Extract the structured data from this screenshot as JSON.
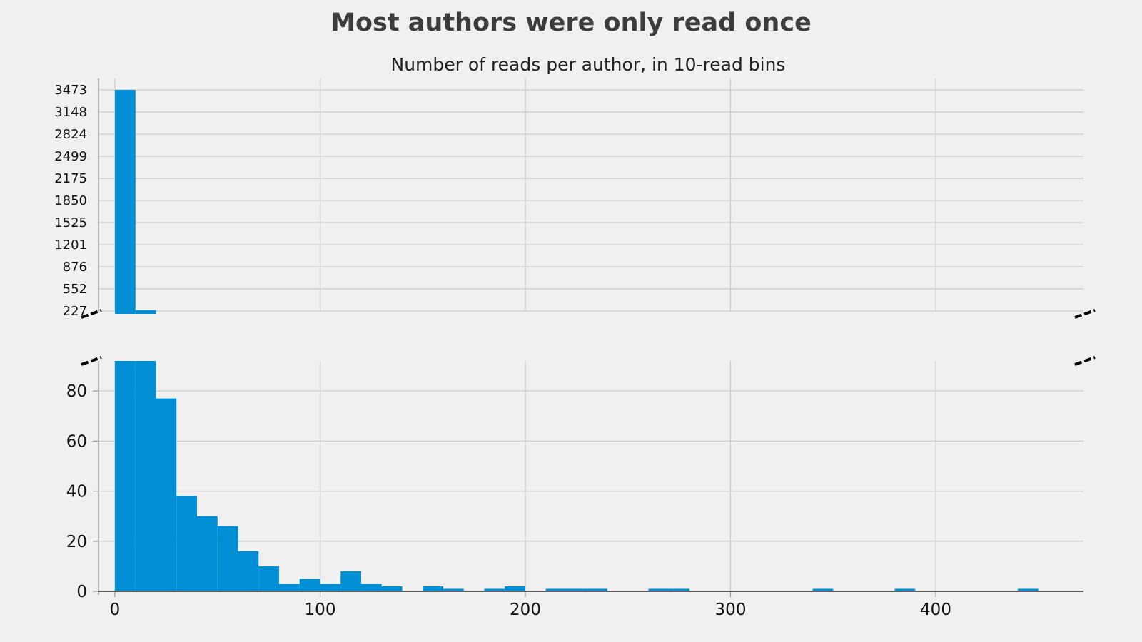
{
  "chart_data": {
    "type": "bar",
    "title": "Most authors were only read once",
    "subtitle": "Number of reads per author, in 10-read bins",
    "xlabel": "",
    "ylabel": "",
    "bin_width": 10,
    "x_ticks": [
      0,
      100,
      200,
      300,
      400
    ],
    "xlim": [
      -8,
      472
    ],
    "broken_y_axis": true,
    "upper_panel": {
      "ylim": [
        227,
        3473
      ],
      "y_ticks": [
        227,
        552,
        876,
        1201,
        1525,
        1850,
        2175,
        2499,
        2824,
        3148,
        3473
      ]
    },
    "lower_panel": {
      "ylim": [
        0,
        92
      ],
      "y_ticks": [
        0,
        20,
        40,
        60,
        80
      ]
    },
    "bins": [
      {
        "x": 0,
        "value": 3473
      },
      {
        "x": 10,
        "value": 240
      },
      {
        "x": 20,
        "value": 77
      },
      {
        "x": 30,
        "value": 38
      },
      {
        "x": 40,
        "value": 30
      },
      {
        "x": 50,
        "value": 26
      },
      {
        "x": 60,
        "value": 16
      },
      {
        "x": 70,
        "value": 10
      },
      {
        "x": 80,
        "value": 3
      },
      {
        "x": 90,
        "value": 5
      },
      {
        "x": 100,
        "value": 3
      },
      {
        "x": 110,
        "value": 8
      },
      {
        "x": 120,
        "value": 3
      },
      {
        "x": 130,
        "value": 2
      },
      {
        "x": 150,
        "value": 2
      },
      {
        "x": 160,
        "value": 1
      },
      {
        "x": 180,
        "value": 1
      },
      {
        "x": 190,
        "value": 2
      },
      {
        "x": 210,
        "value": 1
      },
      {
        "x": 220,
        "value": 1
      },
      {
        "x": 230,
        "value": 1
      },
      {
        "x": 260,
        "value": 1
      },
      {
        "x": 270,
        "value": 1
      },
      {
        "x": 340,
        "value": 1
      },
      {
        "x": 380,
        "value": 1
      },
      {
        "x": 440,
        "value": 1
      }
    ],
    "colors": {
      "bar": "#008fd5",
      "grid": "#cbcbcb",
      "background": "#f0f0f0"
    },
    "grid": true
  }
}
